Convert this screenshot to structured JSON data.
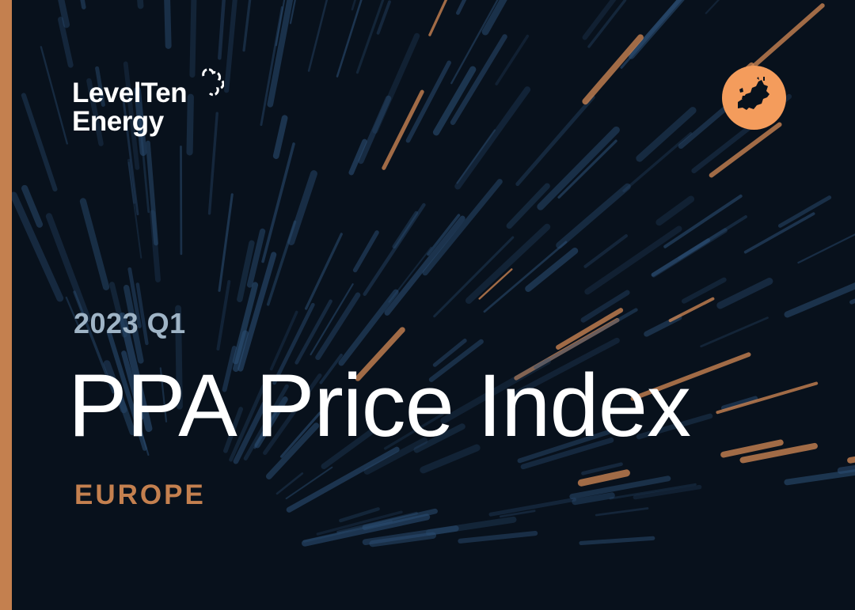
{
  "cover": {
    "logo": {
      "line1": "LevelTen",
      "line2": "Energy"
    },
    "period": "2023 Q1",
    "title": "PPA Price Index",
    "region": "EUROPE",
    "badge_icon": "europe-map-icon"
  },
  "colors": {
    "background": "#08111c",
    "accent_orange": "#c4804f",
    "badge_orange": "#f49c5c",
    "period_blue": "#9fb4c6",
    "streak_blue": "#2c4f75"
  }
}
